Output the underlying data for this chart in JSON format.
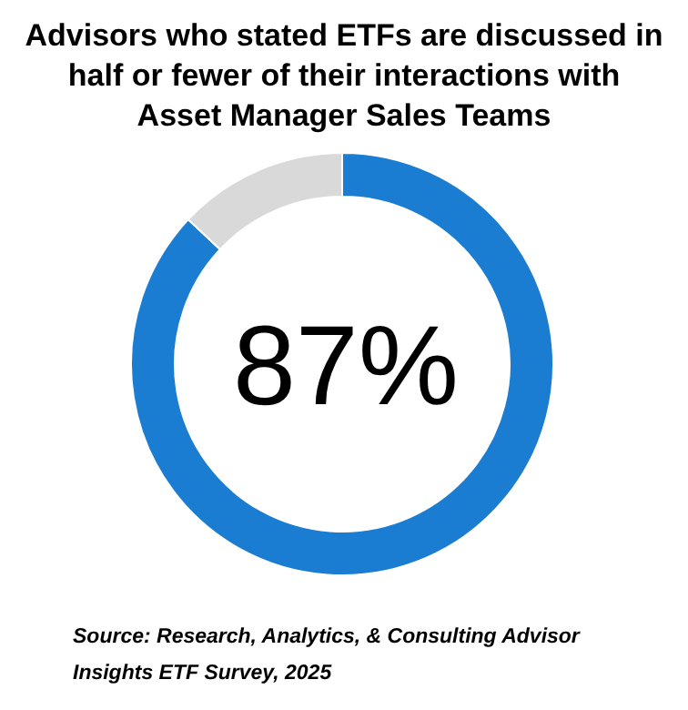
{
  "chart_data": {
    "type": "donut",
    "title": "Advisors who stated ETFs are discussed in half or fewer of their interactions with Asset Manager Sales Teams",
    "categories": [
      null,
      null
    ],
    "values": [
      87,
      13
    ],
    "colors": [
      "#1a7dd1",
      "#d9d9d9"
    ],
    "annotations": [
      "87%",
      "Source: Research, Analytics, & Consulting Advisor Insights ETF Survey, 2025"
    ]
  }
}
